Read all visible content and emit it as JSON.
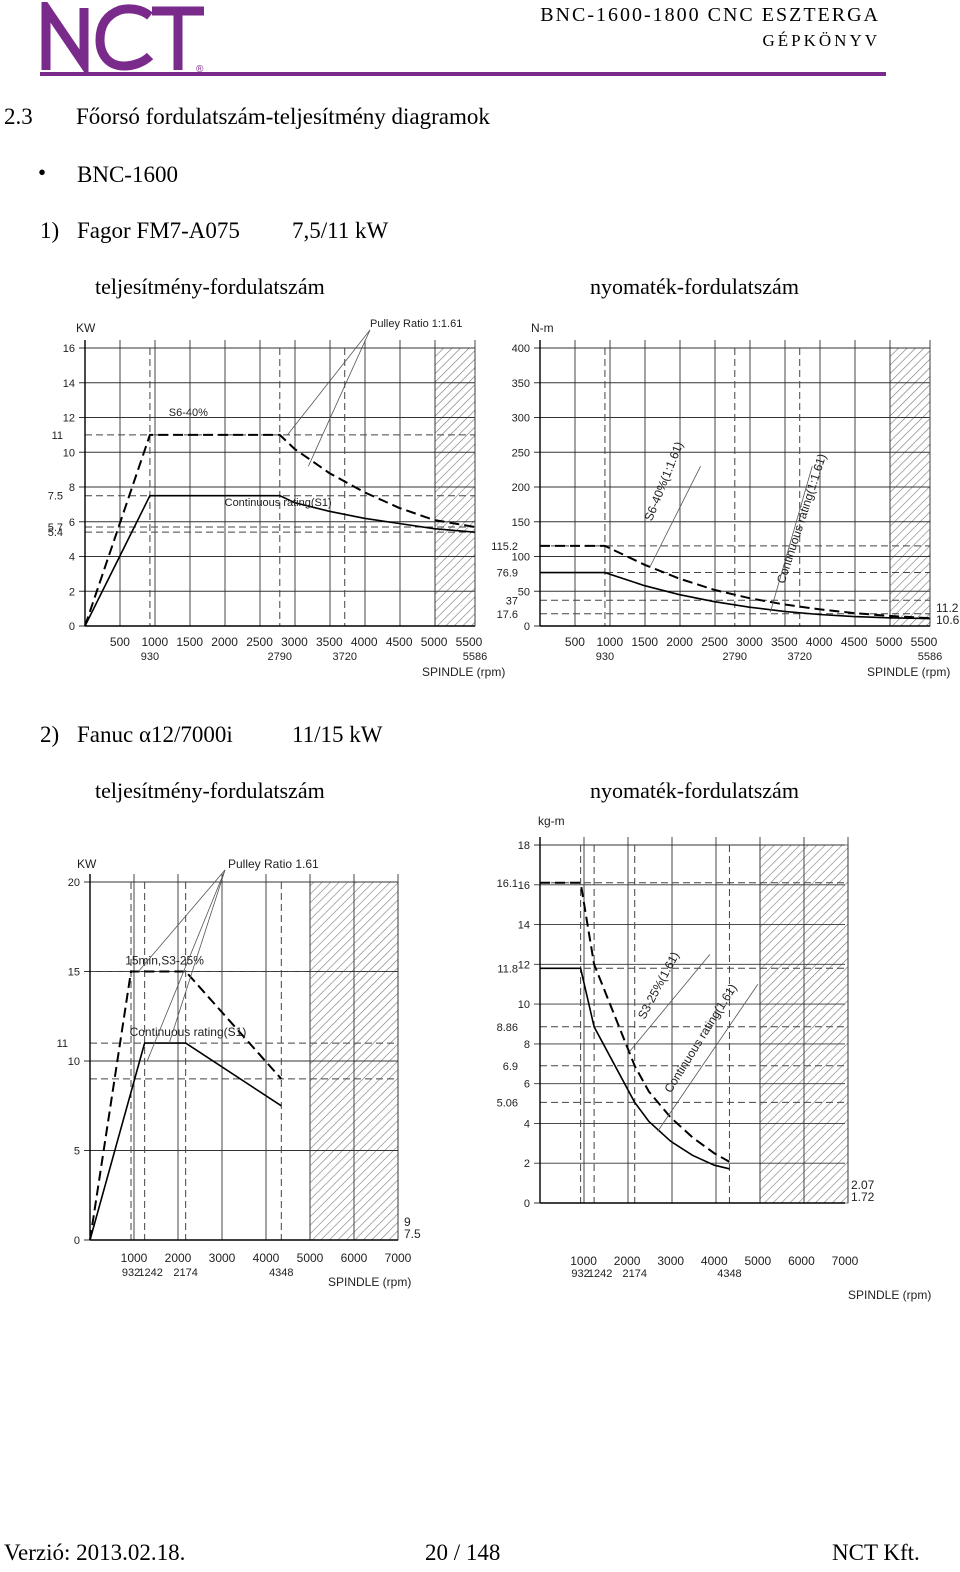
{
  "header": {
    "logo_text": "NCT",
    "line1": "BNC-1600-1800 CNC ESZTERGA",
    "line2": "GÉPKÖNYV",
    "brand_color": "#7a2a8a"
  },
  "section": {
    "number": "2.3",
    "title": "Főorsó fordulatszám-teljesítmény diagramok"
  },
  "bullet": "BNC-1600",
  "motor1": {
    "num": "1)",
    "name": "Fagor FM7-A075",
    "power": "7,5/11 kW",
    "left_title": "teljesítmény-fordulatszám",
    "right_title": "nyomaték-fordulatszám"
  },
  "motor2": {
    "num": "2)",
    "name": "Fanuc α12/7000i",
    "power": "11/15 kW",
    "left_title": "teljesítmény-fordulatszám",
    "right_title": "nyomaték-fordulatszám"
  },
  "footer": {
    "version": "Verzió: 2013.02.18.",
    "page": "20 / 148",
    "company": "NCT Kft."
  },
  "chart_data": [
    {
      "type": "line",
      "ylabel": "KW",
      "xlabel": "SPINDLE (rpm)",
      "annotation": "Pulley Ratio 1:1.61",
      "xlim": [
        0,
        5586
      ],
      "ylim": [
        0,
        16
      ],
      "x_ticks": [
        "500",
        "1000",
        "1500",
        "2000",
        "2500",
        "3000",
        "3500",
        "4000",
        "4500",
        "5000",
        "5500"
      ],
      "x_ticks_2": [
        "930",
        "2790",
        "3720",
        "5586"
      ],
      "y_ticks": [
        "0",
        "2",
        "4",
        "6",
        "8",
        "10",
        "12",
        "14",
        "16"
      ],
      "y_extra": [
        "11",
        "7.5",
        "5.7",
        "5.4"
      ],
      "series": [
        {
          "name": "S6-40%",
          "x": [
            0,
            930,
            2790,
            3000,
            3500,
            4000,
            4500,
            5000,
            5586
          ],
          "y": [
            0,
            11,
            11,
            10.2,
            8.8,
            7.7,
            6.8,
            6.1,
            5.7
          ]
        },
        {
          "name": "Continuous rating(S1)",
          "x": [
            0,
            930,
            2790,
            3000,
            3500,
            4000,
            4500,
            5000,
            5586
          ],
          "y": [
            0,
            7.5,
            7.5,
            7.1,
            6.6,
            6.2,
            5.9,
            5.6,
            5.4
          ]
        }
      ]
    },
    {
      "type": "line",
      "ylabel": "N-m",
      "xlabel": "SPINDLE (rpm)",
      "xlim": [
        0,
        5586
      ],
      "ylim": [
        0,
        400
      ],
      "x_ticks": [
        "500",
        "1000",
        "1500",
        "2000",
        "2500",
        "3000",
        "3500",
        "4000",
        "4500",
        "5000",
        "5500"
      ],
      "x_ticks_2": [
        "930",
        "2790",
        "3720",
        "5586"
      ],
      "y_ticks": [
        "0",
        "50",
        "100",
        "150",
        "200",
        "250",
        "300",
        "350",
        "400"
      ],
      "y_extra": [
        "115.2",
        "76.9",
        "37",
        "17.6"
      ],
      "right_labels": [
        "11.2",
        "10.6"
      ],
      "series": [
        {
          "name": "S6-40%(1:1.61)",
          "x": [
            0,
            930,
            1500,
            2000,
            2500,
            3000,
            3500,
            4000,
            4500,
            5000,
            5586
          ],
          "y": [
            115.2,
            115.2,
            88,
            68,
            52,
            40,
            31,
            24,
            18.5,
            14.5,
            11.2
          ]
        },
        {
          "name": "Continuous rating(1:1.61)",
          "x": [
            0,
            930,
            1500,
            2000,
            2500,
            3000,
            3500,
            4000,
            4500,
            5000,
            5586
          ],
          "y": [
            76.9,
            76.9,
            58,
            45,
            35,
            27,
            21,
            16.5,
            13.5,
            11.8,
            10.6
          ]
        }
      ]
    },
    {
      "type": "line",
      "ylabel": "KW",
      "xlabel": "SPINDLE (rpm)",
      "annotation": "Pulley Ratio 1.61",
      "xlim": [
        0,
        7000
      ],
      "ylim": [
        0,
        20
      ],
      "x_ticks": [
        "1000",
        "2000",
        "3000",
        "4000",
        "5000",
        "6000",
        "7000"
      ],
      "x_ticks_2": [
        "932",
        "1242",
        "2174",
        "4348"
      ],
      "y_ticks": [
        "0",
        "5",
        "10",
        "15",
        "20"
      ],
      "y_extra": [
        "11"
      ],
      "right_labels": [
        "9",
        "7.5"
      ],
      "series": [
        {
          "name": "15min,S3-25%",
          "x": [
            0,
            932,
            2174,
            4348
          ],
          "y": [
            0,
            15,
            15,
            9
          ]
        },
        {
          "name": "Continuous rating(S1)",
          "x": [
            0,
            1242,
            2174,
            4348
          ],
          "y": [
            0,
            11,
            11,
            7.5
          ]
        }
      ]
    },
    {
      "type": "line",
      "ylabel": "kg-m",
      "xlabel": "SPINDLE (rpm)",
      "xlim": [
        0,
        7000
      ],
      "ylim": [
        0,
        18
      ],
      "x_ticks": [
        "1000",
        "2000",
        "3000",
        "4000",
        "5000",
        "6000",
        "7000"
      ],
      "x_ticks_2": [
        "932",
        "1242",
        "2174",
        "4348"
      ],
      "y_ticks": [
        "0",
        "2",
        "4",
        "6",
        "8",
        "10",
        "12",
        "14",
        "16",
        "18"
      ],
      "y_extra": [
        "16.1",
        "11.8",
        "8.86",
        "6.9",
        "5.06"
      ],
      "right_labels": [
        "2.07",
        "1.72"
      ],
      "series": [
        {
          "name": "S3-25%(1.61)",
          "x": [
            0,
            932,
            1242,
            2174,
            2500,
            3000,
            3500,
            4000,
            4348
          ],
          "y": [
            16.1,
            16.1,
            12,
            6.9,
            5.6,
            4.3,
            3.3,
            2.5,
            2.07
          ]
        },
        {
          "name": "Continuous rating(1.61)",
          "x": [
            0,
            932,
            1242,
            2174,
            2500,
            3000,
            3500,
            4000,
            4348
          ],
          "y": [
            11.8,
            11.8,
            8.86,
            5.06,
            4.1,
            3.1,
            2.4,
            1.9,
            1.72
          ]
        }
      ]
    }
  ]
}
